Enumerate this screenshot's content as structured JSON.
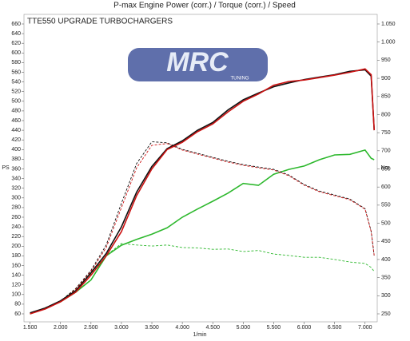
{
  "chart_data": {
    "type": "line",
    "title": "P-max Engine Power (corr.) / Torque (corr.) / Speed",
    "subtitle": "TTE550 UPGRADE TURBOCHARGERS",
    "logo": "MRC",
    "logo_sub": "TUNING",
    "ylabel": "PS",
    "y2label": "Nm",
    "xlabel": "1/min",
    "x": [
      1500,
      1750,
      2000,
      2250,
      2500,
      2750,
      3000,
      3250,
      3500,
      3750,
      4000,
      4250,
      4500,
      4750,
      5000,
      5250,
      5500,
      5750,
      6000,
      6250,
      6500,
      6750,
      7000,
      7100,
      7150
    ],
    "xlim": [
      1400,
      7200
    ],
    "xticks": [
      {
        "value": 1500,
        "label": "1.500"
      },
      {
        "value": 2000,
        "label": "2.000"
      },
      {
        "value": 2500,
        "label": "2.500"
      },
      {
        "value": 3000,
        "label": "3.000"
      },
      {
        "value": 3500,
        "label": "3.500"
      },
      {
        "value": 4000,
        "label": "4.000"
      },
      {
        "value": 4500,
        "label": "4.500"
      },
      {
        "value": 5000,
        "label": "5.000"
      },
      {
        "value": 5500,
        "label": "5.500"
      },
      {
        "value": 6000,
        "label": "6.000"
      },
      {
        "value": 6500,
        "label": "6.500"
      },
      {
        "value": 7000,
        "label": "7.000"
      }
    ],
    "ylim": [
      60,
      660
    ],
    "yticks": [
      60,
      80,
      100,
      120,
      140,
      160,
      180,
      200,
      220,
      240,
      260,
      280,
      300,
      320,
      340,
      360,
      380,
      400,
      420,
      440,
      460,
      480,
      500,
      520,
      540,
      560,
      580,
      600,
      620,
      640,
      660
    ],
    "y2lim": [
      250,
      1050
    ],
    "y2ticks": [
      250,
      300,
      350,
      400,
      450,
      500,
      550,
      600,
      650,
      700,
      750,
      800,
      850,
      900,
      950,
      {
        "value": 1000,
        "label": "1.000"
      },
      {
        "value": 1050,
        "label": "1.050"
      }
    ],
    "series": [
      {
        "color": "#2db82d",
        "dash": false,
        "axis": "y",
        "values": [
          60,
          72,
          85,
          105,
          130,
          180,
          202,
          214,
          225,
          238,
          260,
          277,
          293,
          310,
          330,
          326,
          349,
          359,
          366,
          379,
          389,
          390,
          399,
          382,
          379
        ]
      },
      {
        "color": "#2db82d",
        "dash": true,
        "axis": "y2",
        "values": [
          250,
          265,
          285,
          320,
          360,
          411,
          444,
          440,
          437,
          440,
          433,
          432,
          428,
          429,
          422,
          425,
          415,
          411,
          406,
          406,
          400,
          393,
          389,
          378,
          367
        ]
      },
      {
        "color": "#111111",
        "dash": true,
        "axis": "y2",
        "values": [
          252,
          267,
          285,
          320,
          370,
          440,
          555,
          665,
          725,
          722,
          704,
          693,
          682,
          671,
          662,
          655,
          649,
          633,
          607,
          589,
          578,
          567,
          540,
          478,
          411
        ]
      },
      {
        "color": "#cc1111",
        "dash": true,
        "axis": "y2",
        "values": [
          250,
          265,
          283,
          318,
          367,
          433,
          543,
          653,
          715,
          720,
          702,
          691,
          680,
          669,
          660,
          653,
          647,
          631,
          605,
          587,
          576,
          565,
          539,
          477,
          411
        ]
      },
      {
        "color": "#111111",
        "dash": false,
        "axis": "y",
        "values": [
          62,
          72,
          87,
          108,
          145,
          185,
          240,
          312,
          365,
          402,
          418,
          440,
          456,
          482,
          503,
          517,
          530,
          538,
          545,
          550,
          555,
          562,
          565,
          552,
          440
        ]
      },
      {
        "color": "#cc1111",
        "dash": false,
        "axis": "y",
        "values": [
          60,
          70,
          85,
          105,
          140,
          180,
          230,
          305,
          360,
          400,
          415,
          437,
          453,
          478,
          500,
          515,
          533,
          541,
          544,
          549,
          554,
          560,
          567,
          555,
          440
        ]
      }
    ]
  }
}
